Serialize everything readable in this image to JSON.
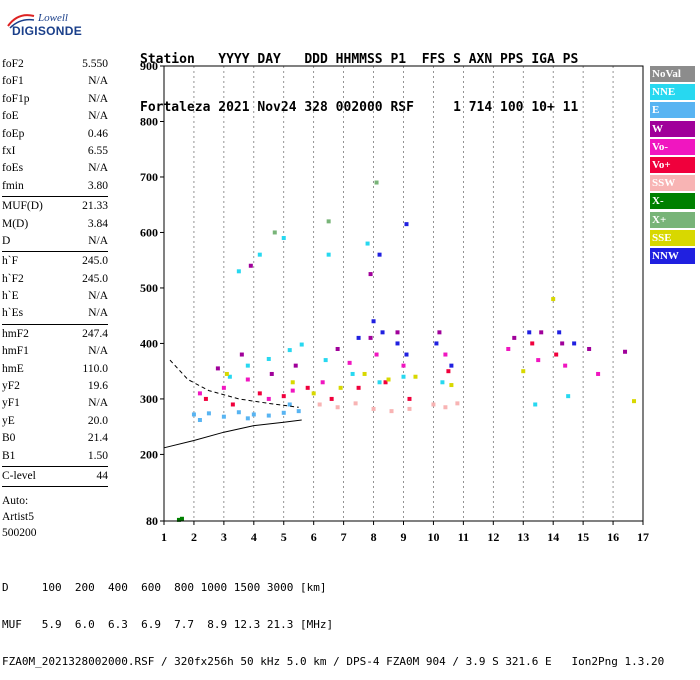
{
  "logo": {
    "top": "Lowell",
    "main": "DIGISONDE"
  },
  "header": {
    "line1": "Station   YYYY DAY   DDD HHMMSS P1  FFS S AXN PPS IGA PS",
    "line2": "Fortaleza 2021 Nov24 328 002000 RSF     1 714 100 10+ 11"
  },
  "params": {
    "group1": [
      {
        "name": "foF2",
        "value": "5.550"
      },
      {
        "name": "foF1",
        "value": "N/A"
      },
      {
        "name": "foF1p",
        "value": "N/A"
      },
      {
        "name": "foE",
        "value": "N/A"
      },
      {
        "name": "foEp",
        "value": "0.46"
      },
      {
        "name": "fxI",
        "value": "6.55"
      },
      {
        "name": "foEs",
        "value": "N/A"
      },
      {
        "name": "fmin",
        "value": "3.80"
      }
    ],
    "group2": [
      {
        "name": "MUF(D)",
        "value": "21.33"
      },
      {
        "name": "M(D)",
        "value": "3.84"
      },
      {
        "name": "D",
        "value": "N/A"
      }
    ],
    "group3": [
      {
        "name": "h`F",
        "value": "245.0"
      },
      {
        "name": "h`F2",
        "value": "245.0"
      },
      {
        "name": "h`E",
        "value": "N/A"
      },
      {
        "name": "h`Es",
        "value": "N/A"
      }
    ],
    "group4": [
      {
        "name": "hmF2",
        "value": "247.4"
      },
      {
        "name": "hmF1",
        "value": "N/A"
      },
      {
        "name": "hmE",
        "value": "110.0"
      },
      {
        "name": "yF2",
        "value": "19.6"
      },
      {
        "name": "yF1",
        "value": "N/A"
      },
      {
        "name": "yE",
        "value": "20.0"
      },
      {
        "name": "B0",
        "value": "21.4"
      },
      {
        "name": "B1",
        "value": "1.50"
      }
    ],
    "group5": [
      {
        "name": "C-level",
        "value": "44"
      }
    ],
    "auto": [
      "Auto:",
      "Artist5",
      "500200"
    ]
  },
  "footer": {
    "line1": "D     100  200  400  600  800 1000 1500 3000 [km]",
    "line2": "MUF   5.9  6.0  6.3  6.9  7.7  8.9 12.3 21.3 [MHz]",
    "line3": "FZA0M_2021328002000.RSF / 320fx256h 50 kHz 5.0 km / DPS-4 FZA0M 904 / 3.9 S 321.6 E   Ion2Png 1.3.20"
  },
  "legend": [
    {
      "label": "NoVal",
      "color": "#8c8c8c"
    },
    {
      "label": "NNE",
      "color": "#27d8f0"
    },
    {
      "label": "E",
      "color": "#58b4f2"
    },
    {
      "label": "W",
      "color": "#a0009a"
    },
    {
      "label": "Vo-",
      "color": "#f016c0"
    },
    {
      "label": "Vo+",
      "color": "#f0003c"
    },
    {
      "label": "SSW",
      "color": "#f8b4b4"
    },
    {
      "label": "X-",
      "color": "#008000"
    },
    {
      "label": "X+",
      "color": "#78b478"
    },
    {
      "label": "SSE",
      "color": "#d8d800"
    },
    {
      "label": "NNW",
      "color": "#2020e0"
    }
  ],
  "chart_data": {
    "type": "scatter",
    "xlabel": "",
    "ylabel": "",
    "xlim": [
      1,
      17
    ],
    "ylim": [
      80,
      900
    ],
    "x_ticks": [
      1,
      2,
      3,
      4,
      5,
      6,
      7,
      8,
      9,
      10,
      11,
      12,
      13,
      14,
      15,
      16,
      17
    ],
    "y_ticks": [
      80,
      200,
      300,
      400,
      500,
      600,
      700,
      800,
      900
    ],
    "grid": "dashed-vertical",
    "series": [
      {
        "name": "E",
        "points": [
          [
            2.0,
            272
          ],
          [
            2.5,
            274
          ],
          [
            3.0,
            268
          ],
          [
            3.5,
            276
          ],
          [
            4.0,
            272
          ],
          [
            4.5,
            270
          ],
          [
            5.0,
            275
          ],
          [
            5.5,
            278
          ],
          [
            2.2,
            262
          ],
          [
            3.8,
            265
          ],
          [
            5.2,
            290
          ]
        ]
      },
      {
        "name": "NNE",
        "points": [
          [
            3.2,
            340
          ],
          [
            3.8,
            360
          ],
          [
            4.5,
            372
          ],
          [
            5.2,
            388
          ],
          [
            5.6,
            398
          ],
          [
            6.4,
            370
          ],
          [
            7.3,
            345
          ],
          [
            8.2,
            330
          ],
          [
            9.0,
            340
          ],
          [
            10.3,
            330
          ],
          [
            13.4,
            290
          ],
          [
            14.5,
            305
          ],
          [
            3.5,
            530
          ],
          [
            4.2,
            560
          ],
          [
            5.0,
            590
          ],
          [
            6.5,
            560
          ],
          [
            7.8,
            580
          ]
        ]
      },
      {
        "name": "Vo-",
        "points": [
          [
            2.2,
            310
          ],
          [
            3.0,
            320
          ],
          [
            3.8,
            335
          ],
          [
            4.5,
            300
          ],
          [
            5.3,
            315
          ],
          [
            6.3,
            330
          ],
          [
            7.2,
            365
          ],
          [
            8.1,
            380
          ],
          [
            9.0,
            360
          ],
          [
            10.4,
            380
          ],
          [
            12.5,
            390
          ],
          [
            13.5,
            370
          ],
          [
            14.4,
            360
          ],
          [
            15.5,
            345
          ]
        ]
      },
      {
        "name": "Vo+",
        "points": [
          [
            2.4,
            300
          ],
          [
            3.3,
            290
          ],
          [
            4.2,
            310
          ],
          [
            5.0,
            305
          ],
          [
            5.8,
            320
          ],
          [
            6.6,
            300
          ],
          [
            7.5,
            320
          ],
          [
            8.4,
            330
          ],
          [
            9.2,
            300
          ],
          [
            10.5,
            350
          ],
          [
            13.3,
            400
          ],
          [
            14.1,
            380
          ]
        ]
      },
      {
        "name": "W",
        "points": [
          [
            2.8,
            355
          ],
          [
            3.6,
            380
          ],
          [
            4.6,
            345
          ],
          [
            5.4,
            360
          ],
          [
            6.8,
            390
          ],
          [
            7.9,
            410
          ],
          [
            8.8,
            420
          ],
          [
            10.2,
            420
          ],
          [
            12.7,
            410
          ],
          [
            13.6,
            420
          ],
          [
            14.3,
            400
          ],
          [
            15.2,
            390
          ],
          [
            16.4,
            385
          ],
          [
            3.9,
            540
          ],
          [
            7.9,
            525
          ]
        ]
      },
      {
        "name": "NNW",
        "points": [
          [
            7.5,
            410
          ],
          [
            8.0,
            440
          ],
          [
            8.3,
            420
          ],
          [
            8.8,
            400
          ],
          [
            9.1,
            380
          ],
          [
            10.1,
            400
          ],
          [
            10.6,
            360
          ],
          [
            13.2,
            420
          ],
          [
            14.2,
            420
          ],
          [
            14.7,
            400
          ],
          [
            8.2,
            560
          ],
          [
            9.1,
            615
          ]
        ]
      },
      {
        "name": "SSW",
        "points": [
          [
            6.2,
            290
          ],
          [
            6.8,
            285
          ],
          [
            7.4,
            292
          ],
          [
            8.0,
            282
          ],
          [
            8.6,
            278
          ],
          [
            9.2,
            282
          ],
          [
            10.0,
            290
          ],
          [
            10.4,
            285
          ],
          [
            10.8,
            292
          ]
        ]
      },
      {
        "name": "SSE",
        "points": [
          [
            3.1,
            345
          ],
          [
            5.3,
            330
          ],
          [
            6.0,
            310
          ],
          [
            6.9,
            320
          ],
          [
            7.7,
            345
          ],
          [
            8.5,
            335
          ],
          [
            9.4,
            340
          ],
          [
            10.6,
            325
          ],
          [
            13.0,
            350
          ],
          [
            14.0,
            480
          ],
          [
            16.7,
            296
          ]
        ]
      },
      {
        "name": "X-",
        "points": [
          [
            1.5,
            82
          ],
          [
            1.6,
            84
          ]
        ]
      },
      {
        "name": "X+",
        "points": [
          [
            6.5,
            620
          ],
          [
            8.1,
            690
          ],
          [
            4.7,
            600
          ]
        ]
      }
    ],
    "trace_line": [
      [
        1.0,
        212
      ],
      [
        2.0,
        225
      ],
      [
        3.0,
        240
      ],
      [
        4.0,
        252
      ],
      [
        5.0,
        258
      ],
      [
        5.6,
        262
      ]
    ],
    "dashed_trace": [
      [
        1.2,
        370
      ],
      [
        1.8,
        335
      ],
      [
        2.5,
        315
      ],
      [
        3.5,
        300
      ],
      [
        4.5,
        292
      ],
      [
        5.5,
        285
      ]
    ]
  }
}
